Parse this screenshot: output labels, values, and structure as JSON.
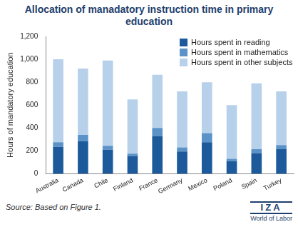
{
  "chart_data": {
    "type": "bar",
    "title": "Allocation of manadatory instruction time in primary education",
    "y_label": "Hours of mandatory education",
    "categories": [
      "Australia",
      "Canada",
      "Chile",
      "Finland",
      "France",
      "Germany",
      "Mexico",
      "Poland",
      "Spain",
      "Turkey"
    ],
    "series": [
      {
        "name": "Hours spent in reading",
        "color": "#1c5a9c",
        "values": [
          235,
          285,
          210,
          155,
          330,
          195,
          275,
          110,
          180,
          215
        ]
      },
      {
        "name": "Hours spent in mathematics",
        "color": "#5b93c9",
        "values": [
          40,
          55,
          35,
          20,
          70,
          35,
          80,
          20,
          35,
          35
        ]
      },
      {
        "name": "Hours spent in other subjects",
        "color": "#b7d1eb",
        "values": [
          725,
          580,
          745,
          475,
          465,
          490,
          445,
          470,
          575,
          470
        ]
      }
    ],
    "stacked": true,
    "ylim": [
      0,
      1200
    ],
    "yticks": [
      0,
      200,
      400,
      600,
      800,
      {
        "value": 1000,
        "label": "1,000"
      },
      {
        "value": 1200,
        "label": "1,200"
      }
    ],
    "grid": false,
    "legend": "upper right"
  },
  "source": "Source: Based on Figure 1.",
  "branding": {
    "name": "IZA",
    "tagline": "World of Labor"
  }
}
